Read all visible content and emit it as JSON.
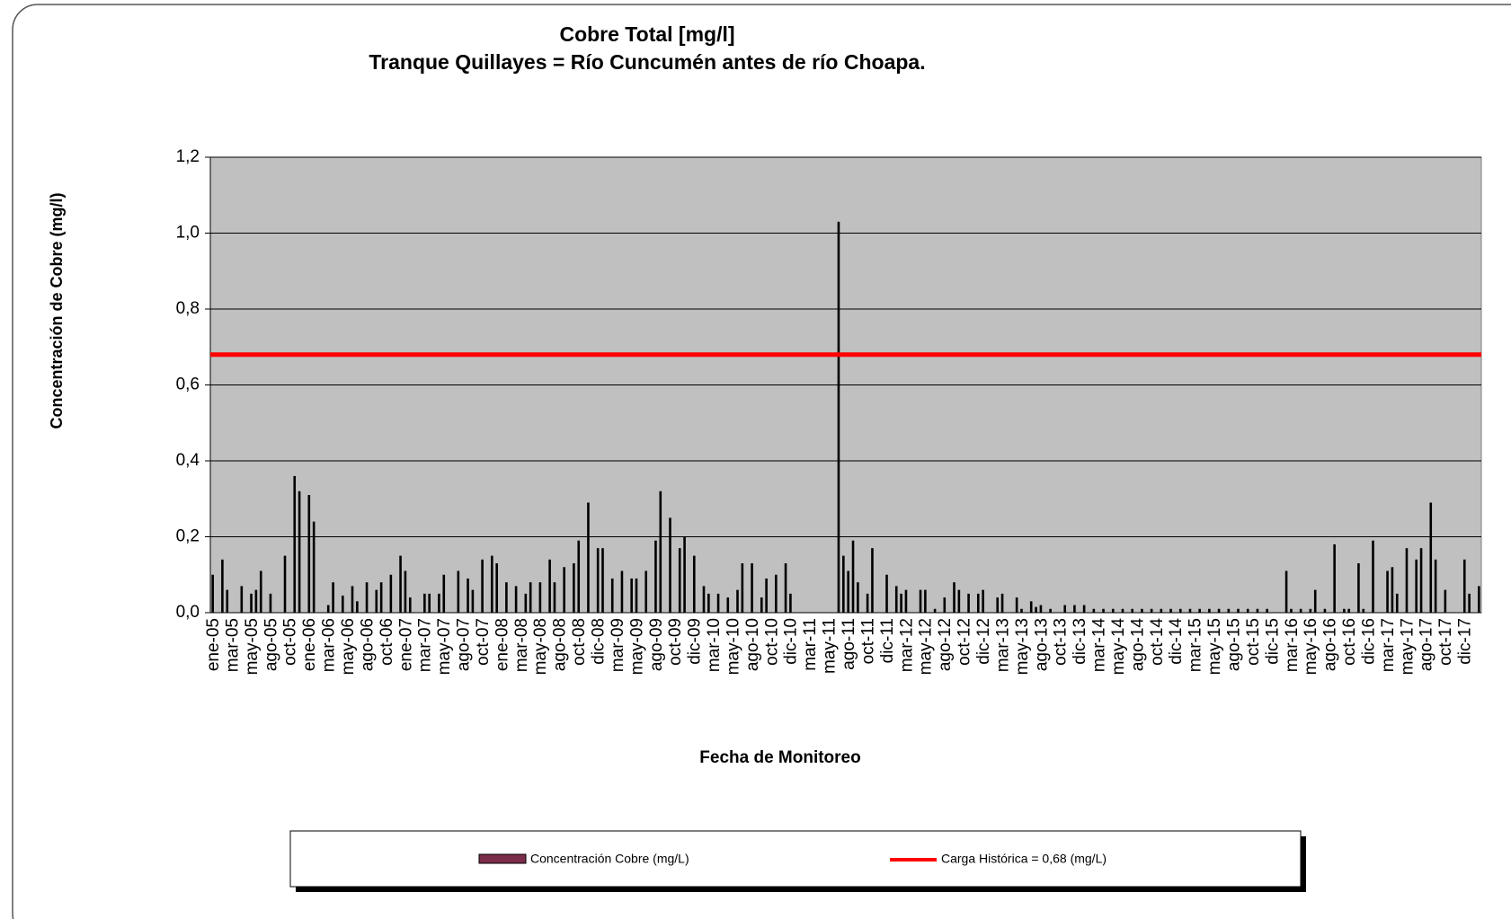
{
  "chart_data": {
    "type": "bar",
    "title": "Cobre Total [mg/l]",
    "subtitle": "Tranque Quillayes = Río Cuncumén antes de río Choapa.",
    "x_label": "Fecha de Monitoreo",
    "y_label": "Concentración de Cobre (mg/l)",
    "categories": [
      "ene-05",
      null,
      null,
      null,
      "mar-05",
      null,
      null,
      null,
      "may-05",
      null,
      null,
      null,
      "ago-05",
      null,
      null,
      null,
      "oct-05",
      null,
      null,
      null,
      "ene-06",
      null,
      null,
      null,
      "mar-06",
      null,
      null,
      null,
      "may-06",
      null,
      null,
      null,
      "ago-06",
      null,
      null,
      null,
      "oct-06",
      null,
      null,
      null,
      "ene-07",
      null,
      null,
      null,
      "mar-07",
      null,
      null,
      null,
      "may-07",
      null,
      null,
      null,
      "ago-07",
      null,
      null,
      null,
      "oct-07",
      null,
      null,
      null,
      "ene-08",
      null,
      null,
      null,
      "mar-08",
      null,
      null,
      null,
      "may-08",
      null,
      null,
      null,
      "ago-08",
      null,
      null,
      null,
      "oct-08",
      null,
      null,
      null,
      "dic-08",
      null,
      null,
      null,
      "mar-09",
      null,
      null,
      null,
      "may-09",
      null,
      null,
      null,
      "ago-09",
      null,
      null,
      null,
      "oct-09",
      null,
      null,
      null,
      "dic-09",
      null,
      null,
      null,
      "mar-10",
      null,
      null,
      null,
      "may-10",
      null,
      null,
      null,
      "ago-10",
      null,
      null,
      null,
      "oct-10",
      null,
      null,
      null,
      "dic-10",
      null,
      null,
      null,
      "mar-11",
      null,
      null,
      null,
      "may-11",
      null,
      null,
      null,
      "ago-11",
      null,
      null,
      null,
      "oct-11",
      null,
      null,
      null,
      "dic-11",
      null,
      null,
      null,
      "mar-12",
      null,
      null,
      null,
      "may-12",
      null,
      null,
      null,
      "ago-12",
      null,
      null,
      null,
      "oct-12",
      null,
      null,
      null,
      "dic-12",
      null,
      null,
      null,
      "mar-13",
      null,
      null,
      null,
      "may-13",
      null,
      null,
      null,
      "ago-13",
      null,
      null,
      null,
      "oct-13",
      null,
      null,
      null,
      "dic-13",
      null,
      null,
      null,
      "mar-14",
      null,
      null,
      null,
      "may-14",
      null,
      null,
      null,
      "ago-14",
      null,
      null,
      null,
      "oct-14",
      null,
      null,
      null,
      "dic-14",
      null,
      null,
      null,
      "mar-15",
      null,
      null,
      null,
      "may-15",
      null,
      null,
      null,
      "ago-15",
      null,
      null,
      null,
      "oct-15",
      null,
      null,
      null,
      "dic-15",
      null,
      null,
      null,
      "mar-16",
      null,
      null,
      null,
      "may-16",
      null,
      null,
      null,
      "ago-16",
      null,
      null,
      null,
      "oct-16",
      null,
      null,
      null,
      "dic-16",
      null,
      null,
      null,
      "mar-17",
      null,
      null,
      null,
      "may-17",
      null,
      null,
      null,
      "ago-17",
      null,
      null,
      null,
      "oct-17",
      null,
      null,
      null,
      "dic-17",
      null,
      null,
      null
    ],
    "series": [
      {
        "name": "Concentración Cobre (mg/L)",
        "color": "#000000",
        "legend_color": "#7b2c4a",
        "values": [
          0.1,
          null,
          0.14,
          0.06,
          null,
          null,
          0.07,
          null,
          0.05,
          0.06,
          0.11,
          null,
          0.05,
          null,
          null,
          0.15,
          null,
          0.36,
          0.32,
          null,
          0.31,
          0.24,
          null,
          null,
          0.02,
          0.08,
          null,
          0.045,
          null,
          0.07,
          0.03,
          null,
          0.08,
          null,
          0.06,
          0.08,
          null,
          0.1,
          null,
          0.15,
          0.11,
          0.04,
          null,
          null,
          0.05,
          0.05,
          null,
          0.05,
          0.1,
          null,
          null,
          0.11,
          null,
          0.09,
          0.06,
          null,
          0.14,
          null,
          0.15,
          0.13,
          null,
          0.08,
          null,
          0.07,
          null,
          0.05,
          0.08,
          null,
          0.08,
          null,
          0.14,
          0.08,
          null,
          0.12,
          null,
          0.13,
          0.19,
          null,
          0.29,
          null,
          0.17,
          0.17,
          null,
          0.09,
          null,
          0.11,
          null,
          0.09,
          0.09,
          null,
          0.11,
          null,
          0.19,
          0.32,
          null,
          0.25,
          null,
          0.17,
          0.2,
          null,
          0.15,
          null,
          0.07,
          0.05,
          null,
          0.05,
          null,
          0.04,
          null,
          0.06,
          0.13,
          null,
          0.13,
          null,
          0.04,
          0.09,
          null,
          0.1,
          null,
          0.13,
          0.05,
          null,
          null,
          null,
          null,
          null,
          null,
          null,
          null,
          null,
          1.03,
          0.15,
          0.11,
          0.19,
          0.08,
          null,
          0.05,
          0.17,
          null,
          null,
          0.1,
          null,
          0.07,
          0.05,
          0.06,
          null,
          null,
          0.06,
          0.06,
          null,
          0.01,
          null,
          0.04,
          null,
          0.08,
          0.06,
          null,
          0.05,
          null,
          0.05,
          0.06,
          null,
          null,
          0.04,
          0.05,
          null,
          null,
          0.04,
          0.01,
          null,
          0.03,
          0.015,
          0.02,
          null,
          0.01,
          null,
          null,
          0.02,
          null,
          0.02,
          null,
          0.02,
          null,
          0.01,
          null,
          0.01,
          null,
          0.01,
          null,
          0.01,
          null,
          0.01,
          null,
          0.01,
          null,
          0.01,
          null,
          0.01,
          null,
          0.01,
          null,
          0.01,
          null,
          0.01,
          null,
          0.01,
          null,
          0.01,
          null,
          0.01,
          null,
          0.01,
          null,
          0.01,
          null,
          0.01,
          null,
          0.01,
          null,
          0.01,
          null,
          null,
          null,
          0.11,
          0.01,
          null,
          0.01,
          null,
          0.01,
          0.06,
          null,
          0.01,
          null,
          0.18,
          null,
          0.01,
          0.01,
          null,
          0.13,
          0.01,
          null,
          0.19,
          null,
          null,
          0.11,
          0.12,
          0.05,
          null,
          0.17,
          null,
          0.14,
          0.17,
          null,
          0.29,
          0.14,
          null,
          0.06,
          null,
          null,
          null,
          0.14,
          0.05,
          null,
          0.07
        ]
      }
    ],
    "reference_line": {
      "name": "Carga Histórica = 0,68 (mg/L)",
      "value": 0.68,
      "color": "#ff0000"
    },
    "ylim": [
      0,
      1.2
    ],
    "yticks": [
      {
        "value": 0,
        "label": "0,0"
      },
      {
        "value": 0.2,
        "label": "0,2"
      },
      {
        "value": 0.4,
        "label": "0,4"
      },
      {
        "value": 0.6,
        "label": "0,6"
      },
      {
        "value": 0.8,
        "label": "0,8"
      },
      {
        "value": 1.0,
        "label": "1,0"
      },
      {
        "value": 1.2,
        "label": "1,2"
      }
    ],
    "grid": true,
    "legend": "bottom",
    "plot_background": "#c0c0c0"
  }
}
